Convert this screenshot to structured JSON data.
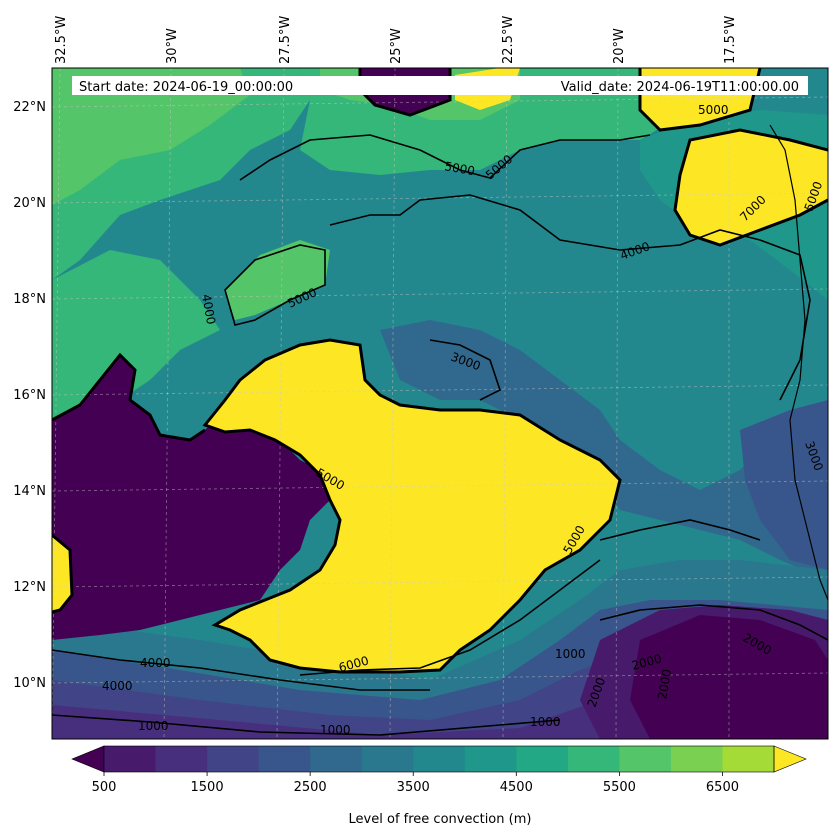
{
  "header": {
    "start_date": "Start date: 2024-06-19_00:00:00",
    "valid_date": "Valid_date: 2024-06-19T11:00:00.00"
  },
  "axes": {
    "lon_labels": [
      "32.5°W",
      "30°W",
      "27.5°W",
      "25°W",
      "22.5°W",
      "20°W",
      "17.5°W"
    ],
    "lat_labels": [
      "22°N",
      "20°N",
      "18°N",
      "16°N",
      "14°N",
      "12°N",
      "10°N"
    ]
  },
  "contour_labels": [
    "5000",
    "5000",
    "5000",
    "5000",
    "7000",
    "5000",
    "4000",
    "5000",
    "4000",
    "3000",
    "3000",
    "5000",
    "2000",
    "2000",
    "2000",
    "1000",
    "1000",
    "1000",
    "1000",
    "4000",
    "4000",
    "6000",
    "2000"
  ],
  "colorbar": {
    "label": "Level of free convection (m)",
    "tick_labels": [
      "500",
      "1500",
      "2500",
      "3500",
      "4500",
      "5500",
      "6500"
    ],
    "levels": [
      500,
      1000,
      1500,
      2000,
      2500,
      3000,
      3500,
      4000,
      4500,
      5000,
      5500,
      6000,
      6500,
      7000
    ],
    "colors": [
      "#440154",
      "#481a6c",
      "#472f7d",
      "#414487",
      "#39568c",
      "#31688e",
      "#2a788e",
      "#23888e",
      "#1f988b",
      "#22a884",
      "#35b779",
      "#54c568",
      "#7ad151",
      "#a5db36",
      "#d2e21b",
      "#fde725"
    ],
    "extend": "both"
  },
  "legend_swatch_colors": {
    "under": "#440154",
    "over": "#fde725"
  }
}
